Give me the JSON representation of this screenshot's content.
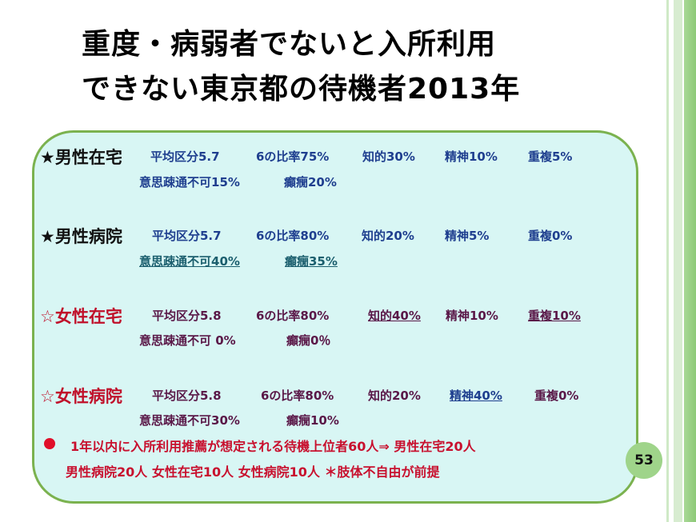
{
  "title": {
    "line1": "重度・病弱者でないと入所利用",
    "line2": "できない東京都の待機者2013年"
  },
  "groups": [
    {
      "heading": "★男性在宅",
      "line1": [
        "平均区分5.7",
        "6の比率75%",
        "知的30%",
        "精神10%",
        "重複5%"
      ],
      "line2": [
        "意思疎通不可15%",
        "癲癇20%"
      ]
    },
    {
      "heading": "★男性病院",
      "line1": [
        "平均区分5.7",
        "6の比率80%",
        "知的20%",
        "精神5%",
        "重複0%"
      ],
      "line2": [
        "意思疎通不可40%",
        "癲癇35%"
      ]
    },
    {
      "heading": "☆女性在宅",
      "line1": [
        "平均区分5.8",
        "6の比率80%",
        "知的40%",
        "精神10%",
        "重複10%"
      ],
      "line2": [
        "意思疎通不可 0%",
        "癲癇0％"
      ]
    },
    {
      "heading": "☆女性病院",
      "line1": [
        "平均区分5.8",
        "6の比率80%",
        "知的20%",
        "精神40%",
        "重複0%"
      ],
      "line2": [
        "意思疎通不可30%",
        "癲癇10%"
      ]
    }
  ],
  "note": {
    "line1": "1年以内に入所利用推薦が想定される待機上位者60人⇒ 男性在宅20人",
    "line2": "男性病院20人  女性在宅10人  女性病院10人  ＊肢体不自由が前提"
  },
  "page_number": "53",
  "colors": {
    "panel_bg": "#d8f6f4",
    "panel_border": "#7bb24f",
    "accent_red": "#c8102e",
    "page_badge": "#9fd48a"
  }
}
